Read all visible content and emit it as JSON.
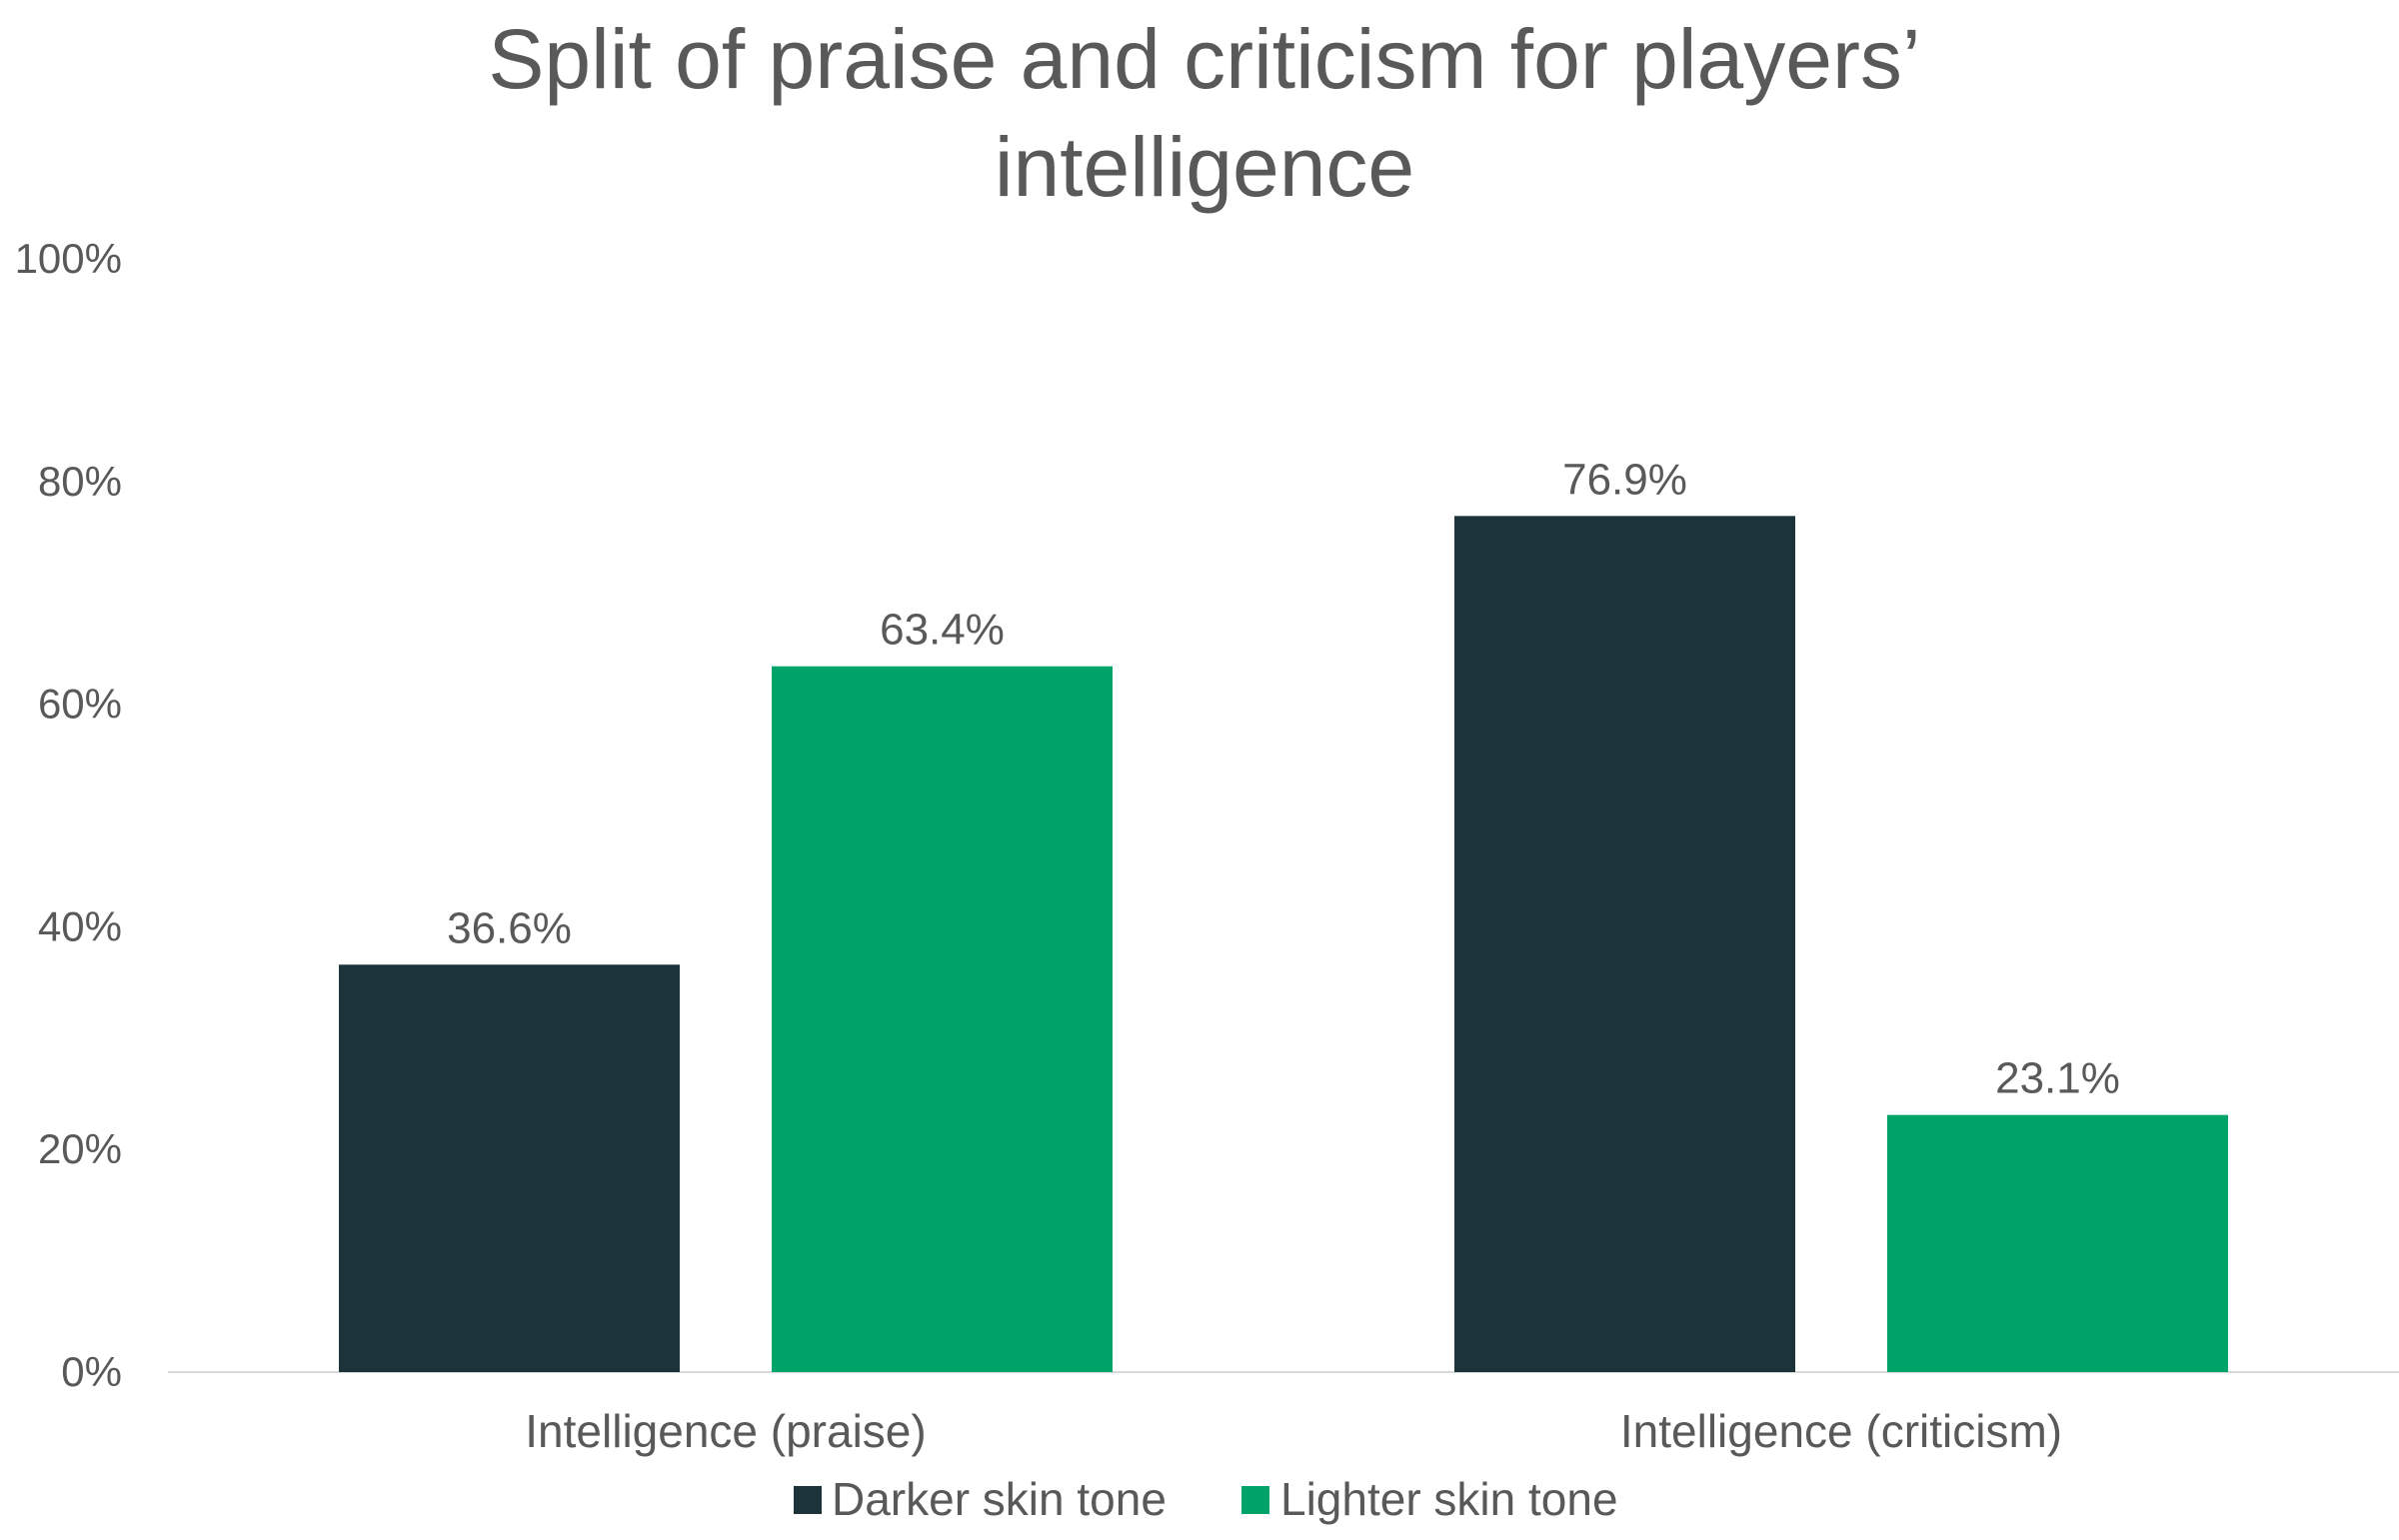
{
  "chart_data": {
    "type": "bar",
    "title_lines": [
      "Split of praise and criticism for players’",
      "intelligence"
    ],
    "categories": [
      "Intelligence (praise)",
      "Intelligence (criticism)"
    ],
    "series": [
      {
        "name": "Darker skin tone",
        "values": [
          36.6,
          76.9
        ],
        "labels": [
          "36.6%",
          "76.9%"
        ],
        "color": "#1c333a"
      },
      {
        "name": "Lighter skin tone",
        "values": [
          63.4,
          23.1
        ],
        "labels": [
          "63.4%",
          "23.1%"
        ],
        "color": "#00a468"
      }
    ],
    "y_ticks": [
      0,
      20,
      40,
      60,
      80,
      100
    ],
    "y_tick_labels": [
      "0%",
      "20%",
      "40%",
      "60%",
      "80%",
      "100%"
    ],
    "ylim": [
      0,
      100
    ],
    "grid": false,
    "legend_position": "bottom",
    "text_color": "#595959",
    "axis_color": "#d9d9d9"
  }
}
